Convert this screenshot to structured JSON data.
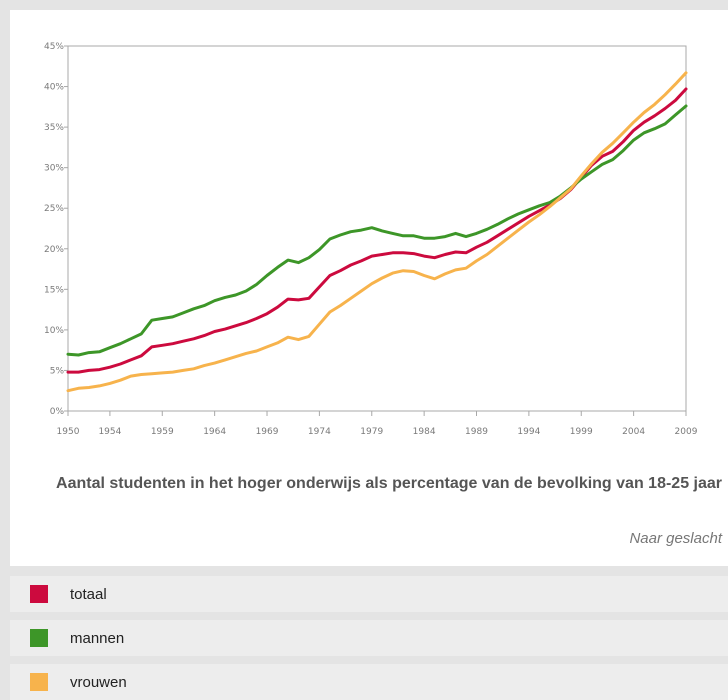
{
  "chart_data": {
    "type": "line",
    "title": "Aantal studenten in het hoger onderwijs als percentage van de bevolking van 18-25 jaar",
    "subtitle": "Naar geslacht",
    "xlabel": "",
    "ylabel": "",
    "xlim": [
      1950,
      2009
    ],
    "ylim": [
      0,
      45
    ],
    "x_ticks": [
      "1950",
      "1954",
      "1959",
      "1964",
      "1969",
      "1974",
      "1979",
      "1984",
      "1989",
      "1994",
      "1999",
      "2004",
      "2009"
    ],
    "y_ticks": [
      "0%",
      "5%",
      "10%",
      "15%",
      "20%",
      "25%",
      "30%",
      "35%",
      "40%",
      "45%"
    ],
    "grid": false,
    "legend_position": "bottom",
    "x": [
      1950,
      1951,
      1952,
      1953,
      1954,
      1955,
      1956,
      1957,
      1958,
      1959,
      1960,
      1961,
      1962,
      1963,
      1964,
      1965,
      1966,
      1967,
      1968,
      1969,
      1970,
      1971,
      1972,
      1973,
      1974,
      1975,
      1976,
      1977,
      1978,
      1979,
      1980,
      1981,
      1982,
      1983,
      1984,
      1985,
      1986,
      1987,
      1988,
      1989,
      1990,
      1991,
      1992,
      1993,
      1994,
      1995,
      1996,
      1997,
      1998,
      1999,
      2000,
      2001,
      2002,
      2003,
      2004,
      2005,
      2006,
      2007,
      2008,
      2009
    ],
    "series": [
      {
        "name": "totaal",
        "color": "#cc0a3e",
        "values": [
          4.8,
          4.8,
          5.0,
          5.1,
          5.4,
          5.8,
          6.3,
          6.8,
          7.9,
          8.1,
          8.3,
          8.6,
          8.9,
          9.3,
          9.8,
          10.1,
          10.5,
          10.9,
          11.4,
          12.0,
          12.8,
          13.8,
          13.7,
          13.9,
          15.3,
          16.7,
          17.3,
          18.0,
          18.5,
          19.1,
          19.3,
          19.5,
          19.5,
          19.4,
          19.1,
          18.9,
          19.3,
          19.6,
          19.5,
          20.2,
          20.8,
          21.6,
          22.4,
          23.2,
          24.0,
          24.7,
          25.4,
          26.2,
          27.3,
          28.8,
          30.3,
          31.4,
          32.0,
          33.2,
          34.6,
          35.6,
          36.4,
          37.3,
          38.3,
          39.7
        ]
      },
      {
        "name": "mannen",
        "color": "#3d9628",
        "values": [
          7.0,
          6.9,
          7.2,
          7.3,
          7.8,
          8.3,
          8.9,
          9.5,
          11.2,
          11.4,
          11.6,
          12.1,
          12.6,
          13.0,
          13.6,
          14.0,
          14.3,
          14.8,
          15.6,
          16.7,
          17.7,
          18.6,
          18.3,
          18.9,
          19.9,
          21.2,
          21.7,
          22.1,
          22.3,
          22.6,
          22.2,
          21.9,
          21.6,
          21.6,
          21.3,
          21.3,
          21.5,
          21.9,
          21.5,
          21.9,
          22.4,
          23.0,
          23.7,
          24.3,
          24.8,
          25.3,
          25.7,
          26.5,
          27.5,
          28.6,
          29.5,
          30.4,
          31.0,
          32.1,
          33.4,
          34.3,
          34.8,
          35.4,
          36.5,
          37.6
        ]
      },
      {
        "name": "vrouwen",
        "color": "#f7b34c",
        "values": [
          2.5,
          2.8,
          2.9,
          3.1,
          3.4,
          3.8,
          4.3,
          4.5,
          4.6,
          4.7,
          4.8,
          5.0,
          5.2,
          5.6,
          5.9,
          6.3,
          6.7,
          7.1,
          7.4,
          7.9,
          8.4,
          9.1,
          8.8,
          9.2,
          10.7,
          12.2,
          13.0,
          13.9,
          14.8,
          15.7,
          16.4,
          17.0,
          17.3,
          17.2,
          16.7,
          16.3,
          16.9,
          17.4,
          17.6,
          18.5,
          19.3,
          20.3,
          21.3,
          22.3,
          23.3,
          24.2,
          25.2,
          26.3,
          27.4,
          29.0,
          30.5,
          31.9,
          33.0,
          34.3,
          35.6,
          36.8,
          37.8,
          39.0,
          40.3,
          41.7
        ]
      }
    ]
  }
}
